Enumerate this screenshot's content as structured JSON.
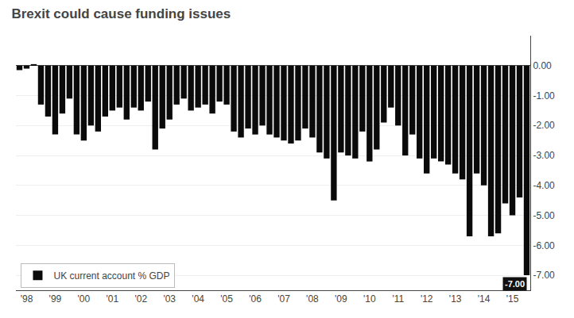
{
  "chart_data": {
    "type": "bar",
    "title": "Brexit could cause funding issues",
    "categories": [
      null,
      "'98",
      null,
      null,
      null,
      "'99",
      null,
      null,
      null,
      "'00",
      null,
      null,
      null,
      "'01",
      null,
      null,
      null,
      "'02",
      null,
      null,
      null,
      "'03",
      null,
      null,
      null,
      "'04",
      null,
      null,
      null,
      "'05",
      null,
      null,
      null,
      "'06",
      null,
      null,
      null,
      "'07",
      null,
      null,
      null,
      "'08",
      null,
      null,
      null,
      "'09",
      null,
      null,
      null,
      "'10",
      null,
      null,
      null,
      "'11",
      null,
      null,
      null,
      "'12",
      null,
      null,
      null,
      "'13",
      null,
      null,
      null,
      "'14",
      null,
      null,
      null,
      "'15",
      null,
      null
    ],
    "series": [
      {
        "name": "UK current account % GDP",
        "color": "#0a0a0a",
        "values": [
          -0.15,
          -0.1,
          0.05,
          -1.3,
          -1.7,
          -2.3,
          -1.6,
          -1.1,
          -2.3,
          -2.5,
          -2.0,
          -2.2,
          -1.7,
          -1.5,
          -1.4,
          -1.8,
          -1.4,
          -1.5,
          -1.2,
          -2.8,
          -2.1,
          -1.8,
          -1.3,
          -1.1,
          -1.5,
          -1.4,
          -1.3,
          -1.6,
          -1.2,
          -1.3,
          -2.2,
          -2.4,
          -2.1,
          -2.3,
          -2.0,
          -2.3,
          -2.4,
          -2.5,
          -2.6,
          -2.5,
          -2.1,
          -2.4,
          -2.9,
          -3.1,
          -4.5,
          -2.9,
          -3.0,
          -3.1,
          -2.2,
          -3.2,
          -2.8,
          -1.9,
          -1.4,
          -2.0,
          -3.0,
          -2.3,
          -3.1,
          -3.6,
          -3.1,
          -3.2,
          -3.3,
          -3.6,
          -3.8,
          -5.7,
          -3.6,
          -4.0,
          -5.7,
          -5.6,
          -4.6,
          -5.0,
          -4.4,
          -7.0
        ]
      }
    ],
    "ylim": [
      -7.5,
      1.0
    ],
    "yticks": [
      {
        "value": 0.0,
        "label": "0.00"
      },
      {
        "value": -1.0,
        "label": "-1.00"
      },
      {
        "value": -2.0,
        "label": "-2.00"
      },
      {
        "value": -3.0,
        "label": "-3.00"
      },
      {
        "value": -4.0,
        "label": "-4.00"
      },
      {
        "value": -5.0,
        "label": "-5.00"
      },
      {
        "value": -6.0,
        "label": "-6.00"
      },
      {
        "value": -7.0,
        "label": "-7.00"
      }
    ],
    "grid": true,
    "legend": "lower left",
    "annotations": [
      {
        "text": "-7.00",
        "x": 71,
        "y": -7.0
      }
    ]
  }
}
